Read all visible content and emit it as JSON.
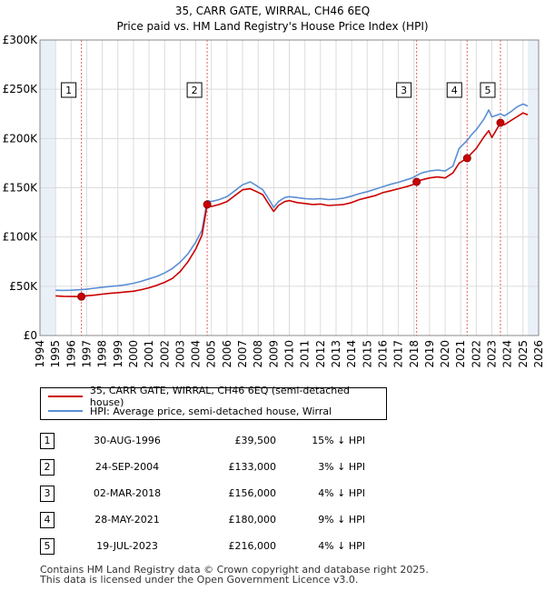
{
  "chart_data": {
    "type": "line",
    "title": "35, CARR GATE, WIRRAL, CH46 6EQ",
    "subtitle": "Price paid vs. HM Land Registry's House Price Index (HPI)",
    "xlim": [
      1994,
      2026
    ],
    "ylim": [
      0,
      300000
    ],
    "x_ticks": [
      1994,
      1995,
      1996,
      1997,
      1998,
      1999,
      2000,
      2001,
      2002,
      2003,
      2004,
      2005,
      2006,
      2007,
      2008,
      2009,
      2010,
      2011,
      2012,
      2013,
      2014,
      2015,
      2016,
      2017,
      2018,
      2019,
      2020,
      2021,
      2022,
      2023,
      2024,
      2025,
      2026
    ],
    "y_ticks": [
      {
        "value": 0,
        "label": "£0"
      },
      {
        "value": 50000,
        "label": "£50K"
      },
      {
        "value": 100000,
        "label": "£100K"
      },
      {
        "value": 150000,
        "label": "£150K"
      },
      {
        "value": 200000,
        "label": "£200K"
      },
      {
        "value": 250000,
        "label": "£250K"
      },
      {
        "value": 300000,
        "label": "£300K"
      }
    ],
    "data_start": 1995.0,
    "data_end": 2025.3,
    "series": [
      {
        "name": "35, CARR GATE, WIRRAL, CH46 6EQ (semi-detached house)",
        "color": "#cc0000",
        "points": [
          [
            1995.0,
            40200
          ],
          [
            1995.5,
            39800
          ],
          [
            1996.0,
            39600
          ],
          [
            1996.66,
            39500
          ],
          [
            1997.0,
            40300
          ],
          [
            1997.5,
            41000
          ],
          [
            1998.0,
            42000
          ],
          [
            1998.5,
            42800
          ],
          [
            1999.0,
            43500
          ],
          [
            1999.5,
            44200
          ],
          [
            2000.0,
            45000
          ],
          [
            2000.5,
            46500
          ],
          [
            2001.0,
            48500
          ],
          [
            2001.5,
            51000
          ],
          [
            2002.0,
            54000
          ],
          [
            2002.5,
            58000
          ],
          [
            2003.0,
            65000
          ],
          [
            2003.5,
            75000
          ],
          [
            2004.0,
            88000
          ],
          [
            2004.4,
            102000
          ],
          [
            2004.73,
            133000
          ],
          [
            2005.0,
            131000
          ],
          [
            2005.5,
            133000
          ],
          [
            2006.0,
            136000
          ],
          [
            2006.5,
            142000
          ],
          [
            2007.0,
            148000
          ],
          [
            2007.5,
            149000
          ],
          [
            2007.9,
            146000
          ],
          [
            2008.3,
            143000
          ],
          [
            2008.7,
            133000
          ],
          [
            2009.0,
            126000
          ],
          [
            2009.3,
            132000
          ],
          [
            2009.7,
            136000
          ],
          [
            2010.0,
            137000
          ],
          [
            2010.5,
            135000
          ],
          [
            2011.0,
            134000
          ],
          [
            2011.5,
            133000
          ],
          [
            2012.0,
            133500
          ],
          [
            2012.5,
            132000
          ],
          [
            2013.0,
            132500
          ],
          [
            2013.5,
            133000
          ],
          [
            2014.0,
            135000
          ],
          [
            2014.5,
            138000
          ],
          [
            2015.0,
            140000
          ],
          [
            2015.5,
            142000
          ],
          [
            2016.0,
            145000
          ],
          [
            2016.5,
            147000
          ],
          [
            2017.0,
            149000
          ],
          [
            2017.5,
            151000
          ],
          [
            2017.9,
            153000
          ],
          [
            2018.17,
            156000
          ],
          [
            2018.5,
            158000
          ],
          [
            2019.0,
            160000
          ],
          [
            2019.5,
            161000
          ],
          [
            2020.0,
            160000
          ],
          [
            2020.5,
            165000
          ],
          [
            2020.9,
            175000
          ],
          [
            2021.41,
            180000
          ],
          [
            2021.7,
            185000
          ],
          [
            2022.0,
            190000
          ],
          [
            2022.5,
            202000
          ],
          [
            2022.8,
            208000
          ],
          [
            2023.0,
            201000
          ],
          [
            2023.55,
            216000
          ],
          [
            2023.8,
            214000
          ],
          [
            2024.2,
            218000
          ],
          [
            2024.6,
            222000
          ],
          [
            2025.0,
            226000
          ],
          [
            2025.3,
            224000
          ]
        ]
      },
      {
        "name": "HPI: Average price, semi-detached house, Wirral",
        "color": "#5b8fd4",
        "points": [
          [
            1995.0,
            46000
          ],
          [
            1995.5,
            45800
          ],
          [
            1996.0,
            46000
          ],
          [
            1996.66,
            46500
          ],
          [
            1997.0,
            47000
          ],
          [
            1997.5,
            48000
          ],
          [
            1998.0,
            49000
          ],
          [
            1998.5,
            49800
          ],
          [
            1999.0,
            50500
          ],
          [
            1999.5,
            51500
          ],
          [
            2000.0,
            53000
          ],
          [
            2000.5,
            55000
          ],
          [
            2001.0,
            57500
          ],
          [
            2001.5,
            60000
          ],
          [
            2002.0,
            63500
          ],
          [
            2002.5,
            68000
          ],
          [
            2003.0,
            74500
          ],
          [
            2003.5,
            83000
          ],
          [
            2004.0,
            95000
          ],
          [
            2004.4,
            107000
          ],
          [
            2004.73,
            137000
          ],
          [
            2005.0,
            136000
          ],
          [
            2005.5,
            138000
          ],
          [
            2006.0,
            141000
          ],
          [
            2006.5,
            147000
          ],
          [
            2007.0,
            153000
          ],
          [
            2007.5,
            156000
          ],
          [
            2007.9,
            152000
          ],
          [
            2008.3,
            148000
          ],
          [
            2008.7,
            138000
          ],
          [
            2009.0,
            130000
          ],
          [
            2009.3,
            136000
          ],
          [
            2009.7,
            140000
          ],
          [
            2010.0,
            141000
          ],
          [
            2010.5,
            140000
          ],
          [
            2011.0,
            139000
          ],
          [
            2011.5,
            138500
          ],
          [
            2012.0,
            139000
          ],
          [
            2012.5,
            138000
          ],
          [
            2013.0,
            138500
          ],
          [
            2013.5,
            139500
          ],
          [
            2014.0,
            141500
          ],
          [
            2014.5,
            144000
          ],
          [
            2015.0,
            146000
          ],
          [
            2015.5,
            148500
          ],
          [
            2016.0,
            151000
          ],
          [
            2016.5,
            153500
          ],
          [
            2017.0,
            155500
          ],
          [
            2017.5,
            158000
          ],
          [
            2017.9,
            160000
          ],
          [
            2018.17,
            162500
          ],
          [
            2018.5,
            165000
          ],
          [
            2019.0,
            167000
          ],
          [
            2019.5,
            168000
          ],
          [
            2020.0,
            167000
          ],
          [
            2020.5,
            172000
          ],
          [
            2020.9,
            190000
          ],
          [
            2021.41,
            198000
          ],
          [
            2021.7,
            204000
          ],
          [
            2022.0,
            209000
          ],
          [
            2022.5,
            220000
          ],
          [
            2022.8,
            229000
          ],
          [
            2023.0,
            222000
          ],
          [
            2023.55,
            225000
          ],
          [
            2023.8,
            223000
          ],
          [
            2024.2,
            227000
          ],
          [
            2024.6,
            232000
          ],
          [
            2025.0,
            235000
          ],
          [
            2025.3,
            233000
          ]
        ]
      }
    ],
    "sales": [
      {
        "num": "1",
        "x": 1996.66,
        "y": 39500
      },
      {
        "num": "2",
        "x": 2004.73,
        "y": 133000
      },
      {
        "num": "3",
        "x": 2018.17,
        "y": 156000
      },
      {
        "num": "4",
        "x": 2021.41,
        "y": 180000
      },
      {
        "num": "5",
        "x": 2023.55,
        "y": 216000
      }
    ]
  },
  "legend": [
    {
      "label": "35, CARR GATE, WIRRAL, CH46 6EQ (semi-detached house)",
      "color": "#cc0000"
    },
    {
      "label": "HPI: Average price, semi-detached house, Wirral",
      "color": "#5b8fd4"
    }
  ],
  "transactions": [
    {
      "num": "1",
      "date": "30-AUG-1996",
      "price": "£39,500",
      "hpi": "15% ↓ HPI"
    },
    {
      "num": "2",
      "date": "24-SEP-2004",
      "price": "£133,000",
      "hpi": "3% ↓ HPI"
    },
    {
      "num": "3",
      "date": "02-MAR-2018",
      "price": "£156,000",
      "hpi": "4% ↓ HPI"
    },
    {
      "num": "4",
      "date": "28-MAY-2021",
      "price": "£180,000",
      "hpi": "9% ↓ HPI"
    },
    {
      "num": "5",
      "date": "19-JUL-2023",
      "price": "£216,000",
      "hpi": "4% ↓ HPI"
    }
  ],
  "footer": {
    "line1": "Contains HM Land Registry data © Crown copyright and database right 2025.",
    "line2": "This data is licensed under the Open Government Licence v3.0."
  }
}
